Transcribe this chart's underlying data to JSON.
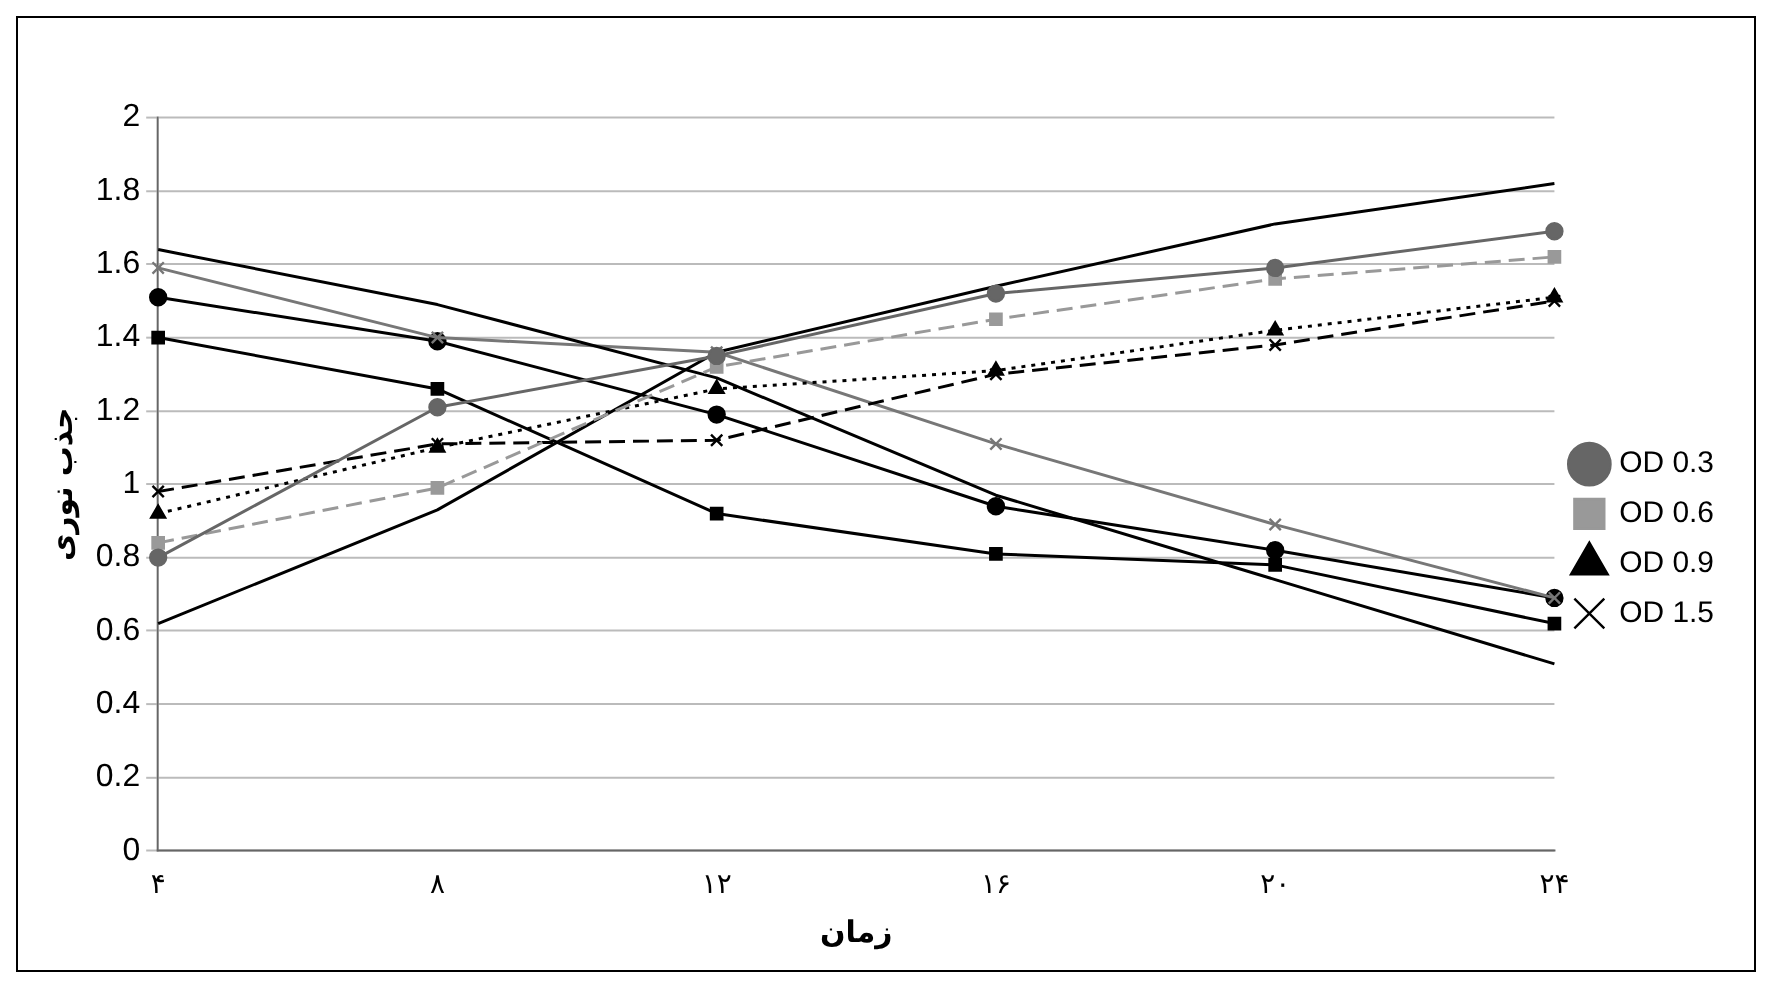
{
  "chart_data": {
    "type": "line",
    "xlabel": "زمان",
    "ylabel": "جذب نوری",
    "categories": [
      "۴",
      "۸",
      "۱۲",
      "۱۶",
      "۲۰",
      "۲۴"
    ],
    "ylim": [
      0,
      2
    ],
    "yticks": [
      0,
      0.2,
      0.4,
      0.6,
      0.8,
      1,
      1.2,
      1.4,
      1.6,
      1.8,
      2
    ],
    "grid": "y",
    "legend": "right",
    "series": [
      {
        "name": "OD 0.3",
        "color": "#666666",
        "marker": "circle",
        "line_style": "solid",
        "values": [
          0.8,
          1.21,
          1.35,
          1.52,
          1.59,
          1.69
        ]
      },
      {
        "name": "OD 0.6",
        "color": "#999999",
        "marker": "square",
        "line_style": "dashed",
        "values": [
          0.84,
          0.99,
          1.32,
          1.45,
          1.56,
          1.62
        ]
      },
      {
        "name": "OD 0.9",
        "color": "#000000",
        "marker": "triangle",
        "line_style": "dotted",
        "values": [
          0.92,
          1.1,
          1.26,
          1.31,
          1.42,
          1.51
        ]
      },
      {
        "name": "OD 1.5",
        "color": "#000000",
        "marker": "cross",
        "line_style": "dashed",
        "values": [
          0.98,
          1.11,
          1.12,
          1.3,
          1.38,
          1.5
        ]
      },
      {
        "color": "#000000",
        "marker": "none",
        "line_style": "solid",
        "values": [
          0.62,
          0.93,
          1.36,
          1.54,
          1.71,
          1.82
        ]
      },
      {
        "color": "#000000",
        "marker": "none",
        "line_style": "solid",
        "values": [
          1.64,
          1.49,
          1.29,
          0.97,
          0.74,
          0.51
        ]
      },
      {
        "color": "#777777",
        "marker": "cross",
        "line_style": "solid",
        "values": [
          1.59,
          1.4,
          1.36,
          1.11,
          0.89,
          0.69
        ]
      },
      {
        "color": "#000000",
        "marker": "circle",
        "line_style": "solid",
        "values": [
          1.51,
          1.39,
          1.19,
          0.94,
          0.82,
          0.69
        ]
      },
      {
        "color": "#000000",
        "marker": "square",
        "line_style": "solid",
        "values": [
          1.4,
          1.26,
          0.92,
          0.81,
          0.78,
          0.62
        ]
      }
    ]
  }
}
